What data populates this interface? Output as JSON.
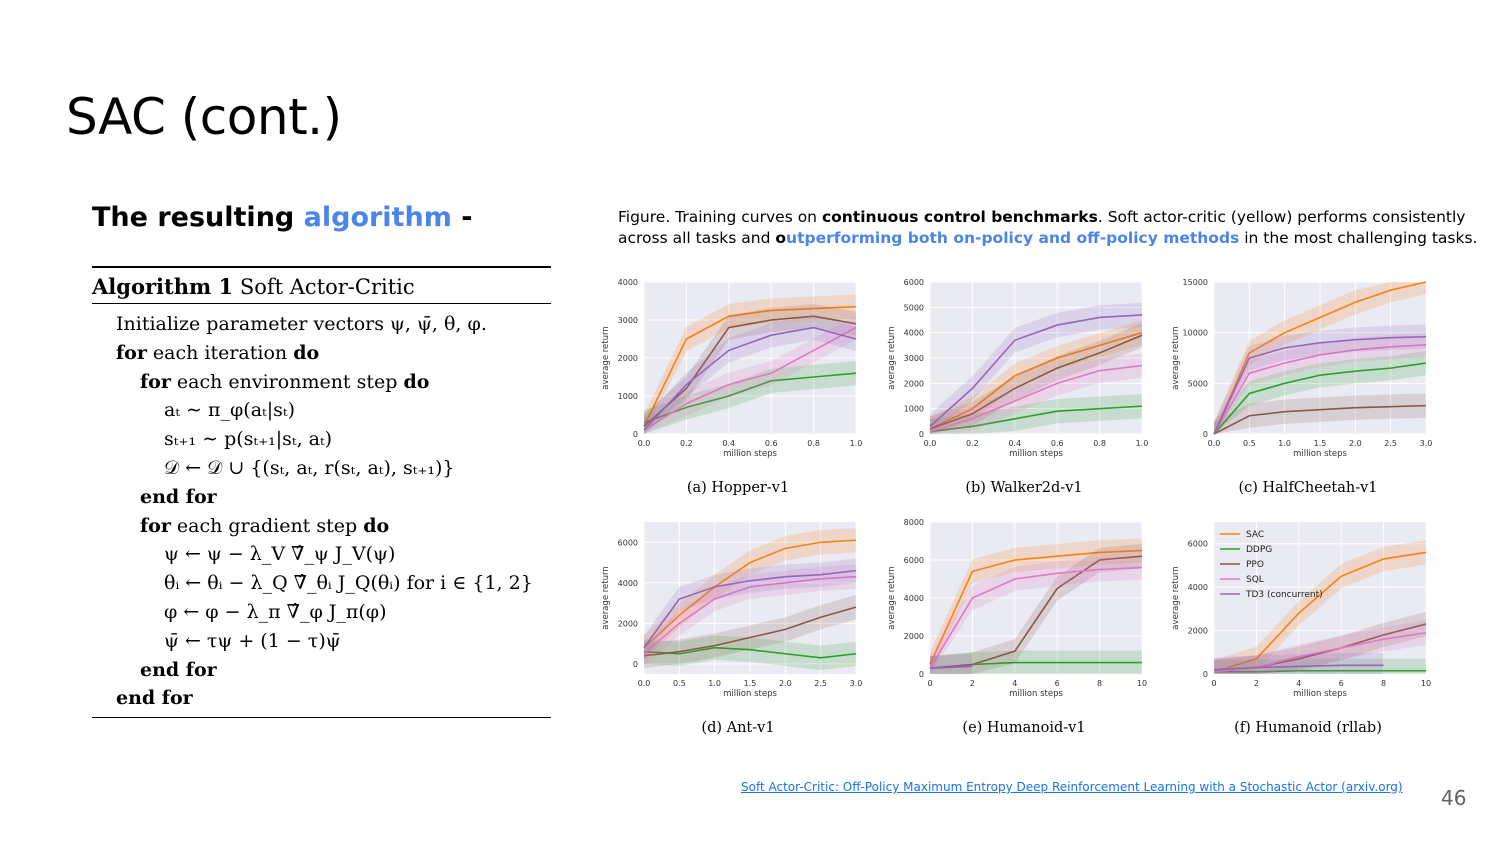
{
  "slide": {
    "title": "SAC (cont.)",
    "heading_prefix": "The resulting ",
    "heading_accent": "algorithm",
    "heading_suffix": " -",
    "page_number": "46",
    "reference_link": "Soft Actor-Critic: Off-Policy Maximum Entropy Deep Reinforcement Learning with a Stochastic Actor (arxiv.org)"
  },
  "algorithm": {
    "label": "Algorithm 1",
    "name": "Soft Actor-Critic",
    "lines": [
      {
        "indent": 1,
        "kw": "",
        "text": "Initialize parameter vectors ψ, ψ̄, θ, φ."
      },
      {
        "indent": 1,
        "kw": "for",
        "text": " each iteration ",
        "kw2": "do"
      },
      {
        "indent": 2,
        "kw": "for",
        "text": " each environment step ",
        "kw2": "do"
      },
      {
        "indent": 3,
        "kw": "",
        "text": "aₜ ∼ π_φ(aₜ|sₜ)"
      },
      {
        "indent": 3,
        "kw": "",
        "text": "sₜ₊₁ ∼ p(sₜ₊₁|sₜ, aₜ)"
      },
      {
        "indent": 3,
        "kw": "",
        "text": "𝒟 ← 𝒟 ∪ {(sₜ, aₜ, r(sₜ, aₜ), sₜ₊₁)}"
      },
      {
        "indent": 2,
        "kw": "end for",
        "text": ""
      },
      {
        "indent": 2,
        "kw": "for",
        "text": " each gradient step ",
        "kw2": "do"
      },
      {
        "indent": 3,
        "kw": "",
        "text": "ψ ← ψ − λ_V ∇̂_ψ J_V(ψ)"
      },
      {
        "indent": 3,
        "kw": "",
        "text": "θᵢ ← θᵢ − λ_Q ∇̂_θᵢ J_Q(θᵢ) for i ∈ {1, 2}"
      },
      {
        "indent": 3,
        "kw": "",
        "text": "φ ← φ − λ_π ∇̂_φ J_π(φ)"
      },
      {
        "indent": 3,
        "kw": "",
        "text": "ψ̄ ← τψ + (1 − τ)ψ̄"
      },
      {
        "indent": 2,
        "kw": "end for",
        "text": ""
      },
      {
        "indent": 1,
        "kw": "end for",
        "text": ""
      }
    ]
  },
  "figure_caption": {
    "p1": "Figure. Training curves on ",
    "b1": "continuous control benchmarks",
    "p2": ". Soft actor-critic (yellow) performs consistently across all tasks and ",
    "b2": "o",
    "hl": "utperforming both on-policy and off-policy methods",
    "p3": " in the most challenging tasks."
  },
  "chart_data": [
    {
      "type": "line",
      "caption": "(a)  Hopper-v1",
      "xlabel": "million steps",
      "ylabel": "average return",
      "xlim": [
        0,
        1.0
      ],
      "ylim": [
        0,
        4000
      ],
      "xticks": [
        "0.0",
        "0.2",
        "0.4",
        "0.6",
        "0.8",
        "1.0"
      ],
      "yticks": [
        "0",
        "1000",
        "2000",
        "3000",
        "4000"
      ],
      "x": [
        0,
        0.2,
        0.4,
        0.6,
        0.8,
        1.0
      ],
      "series": [
        {
          "color": "#ff7f0e",
          "values": [
            200,
            2500,
            3100,
            3250,
            3300,
            3350
          ]
        },
        {
          "color": "#2ca02c",
          "values": [
            300,
            700,
            1000,
            1400,
            1500,
            1600
          ]
        },
        {
          "color": "#8c564b",
          "values": [
            200,
            1200,
            2800,
            3000,
            3100,
            2900
          ]
        },
        {
          "color": "#e377c2",
          "values": [
            100,
            800,
            1300,
            1600,
            2200,
            2800
          ]
        },
        {
          "color": "#9467bd",
          "values": [
            100,
            1300,
            2200,
            2600,
            2800,
            2500
          ]
        }
      ]
    },
    {
      "type": "line",
      "caption": "(b)  Walker2d-v1",
      "xlabel": "million steps",
      "ylabel": "average return",
      "xlim": [
        0,
        1.0
      ],
      "ylim": [
        0,
        6000
      ],
      "xticks": [
        "0.0",
        "0.2",
        "0.4",
        "0.6",
        "0.8",
        "1.0"
      ],
      "yticks": [
        "0",
        "1000",
        "2000",
        "3000",
        "4000",
        "5000",
        "6000"
      ],
      "x": [
        0,
        0.2,
        0.4,
        0.6,
        0.8,
        1.0
      ],
      "series": [
        {
          "color": "#ff7f0e",
          "values": [
            200,
            1000,
            2300,
            3000,
            3500,
            4000
          ]
        },
        {
          "color": "#2ca02c",
          "values": [
            100,
            300,
            600,
            900,
            1000,
            1100
          ]
        },
        {
          "color": "#8c564b",
          "values": [
            200,
            800,
            1800,
            2600,
            3200,
            3900
          ]
        },
        {
          "color": "#e377c2",
          "values": [
            100,
            600,
            1300,
            2000,
            2500,
            2700
          ]
        },
        {
          "color": "#9467bd",
          "values": [
            300,
            1800,
            3700,
            4300,
            4600,
            4700
          ]
        }
      ]
    },
    {
      "type": "line",
      "caption": "(c)  HalfCheetah-v1",
      "xlabel": "million steps",
      "ylabel": "average return",
      "xlim": [
        0,
        3.0
      ],
      "ylim": [
        0,
        15000
      ],
      "xticks": [
        "0.0",
        "0.5",
        "1.0",
        "1.5",
        "2.0",
        "2.5",
        "3.0"
      ],
      "yticks": [
        "0",
        "5000",
        "10000",
        "15000"
      ],
      "x": [
        0,
        0.5,
        1.0,
        1.5,
        2.0,
        2.5,
        3.0
      ],
      "series": [
        {
          "color": "#ff7f0e",
          "values": [
            0,
            8000,
            10000,
            11500,
            13000,
            14200,
            15000
          ]
        },
        {
          "color": "#2ca02c",
          "values": [
            0,
            4000,
            5000,
            5800,
            6200,
            6500,
            7000
          ]
        },
        {
          "color": "#8c564b",
          "values": [
            0,
            1800,
            2200,
            2400,
            2600,
            2700,
            2800
          ]
        },
        {
          "color": "#e377c2",
          "values": [
            0,
            6000,
            7000,
            7800,
            8300,
            8600,
            8800
          ]
        },
        {
          "color": "#9467bd",
          "values": [
            0,
            7500,
            8500,
            9000,
            9300,
            9500,
            9600
          ]
        }
      ]
    },
    {
      "type": "line",
      "caption": "(d)  Ant-v1",
      "xlabel": "million steps",
      "ylabel": "average return",
      "xlim": [
        0,
        3.0
      ],
      "ylim": [
        -500,
        7000
      ],
      "xticks": [
        "0.0",
        "0.5",
        "1.0",
        "1.5",
        "2.0",
        "2.5",
        "3.0"
      ],
      "yticks": [
        "0",
        "2000",
        "4000",
        "6000"
      ],
      "x": [
        0,
        0.5,
        1.0,
        1.5,
        2.0,
        2.5,
        3.0
      ],
      "series": [
        {
          "color": "#ff7f0e",
          "values": [
            800,
            2400,
            3800,
            5000,
            5700,
            6000,
            6100
          ]
        },
        {
          "color": "#2ca02c",
          "values": [
            600,
            500,
            800,
            700,
            500,
            300,
            500
          ]
        },
        {
          "color": "#8c564b",
          "values": [
            400,
            600,
            900,
            1300,
            1700,
            2300,
            2800
          ]
        },
        {
          "color": "#e377c2",
          "values": [
            500,
            2000,
            3200,
            3800,
            4000,
            4200,
            4300
          ]
        },
        {
          "color": "#9467bd",
          "values": [
            800,
            3200,
            3800,
            4100,
            4300,
            4400,
            4600
          ]
        }
      ]
    },
    {
      "type": "line",
      "caption": "(e)  Humanoid-v1",
      "xlabel": "million steps",
      "ylabel": "average return",
      "xlim": [
        0,
        10
      ],
      "ylim": [
        0,
        8000
      ],
      "xticks": [
        "0",
        "2",
        "4",
        "6",
        "8",
        "10"
      ],
      "yticks": [
        "0",
        "2000",
        "4000",
        "6000",
        "8000"
      ],
      "x": [
        0,
        2,
        4,
        6,
        8,
        10
      ],
      "series": [
        {
          "color": "#ff7f0e",
          "values": [
            500,
            5400,
            6000,
            6200,
            6400,
            6500
          ]
        },
        {
          "color": "#2ca02c",
          "values": [
            300,
            500,
            600,
            600,
            600,
            600
          ]
        },
        {
          "color": "#8c564b",
          "values": [
            300,
            500,
            1200,
            4500,
            6000,
            6200
          ]
        },
        {
          "color": "#e377c2",
          "values": [
            300,
            4000,
            5000,
            5300,
            5500,
            5600
          ]
        },
        {
          "color": "#9467bd",
          "values": [
            300,
            400,
            null,
            null,
            null,
            null
          ]
        }
      ]
    },
    {
      "type": "line",
      "caption": "(f)  Humanoid (rllab)",
      "xlabel": "million steps",
      "ylabel": "average return",
      "xlim": [
        0,
        10
      ],
      "ylim": [
        0,
        7000
      ],
      "xticks": [
        "0",
        "2",
        "4",
        "6",
        "8",
        "10"
      ],
      "yticks": [
        "0",
        "2000",
        "4000",
        "6000"
      ],
      "x": [
        0,
        2,
        4,
        6,
        8,
        10
      ],
      "legend": [
        {
          "name": "SAC",
          "color": "#ff7f0e"
        },
        {
          "name": "DDPG",
          "color": "#2ca02c"
        },
        {
          "name": "PPO",
          "color": "#8c564b"
        },
        {
          "name": "SQL",
          "color": "#e377c2"
        },
        {
          "name": "TD3 (concurrent)",
          "color": "#9467bd"
        }
      ],
      "legend_position": "top-left",
      "series": [
        {
          "color": "#ff7f0e",
          "values": [
            100,
            700,
            2800,
            4500,
            5300,
            5600
          ]
        },
        {
          "color": "#2ca02c",
          "values": [
            100,
            100,
            150,
            150,
            150,
            150
          ]
        },
        {
          "color": "#8c564b",
          "values": [
            100,
            300,
            700,
            1200,
            1800,
            2300
          ]
        },
        {
          "color": "#e377c2",
          "values": [
            100,
            300,
            800,
            1200,
            1600,
            1900
          ]
        },
        {
          "color": "#9467bd",
          "values": [
            200,
            300,
            350,
            400,
            400,
            null
          ]
        }
      ]
    }
  ]
}
